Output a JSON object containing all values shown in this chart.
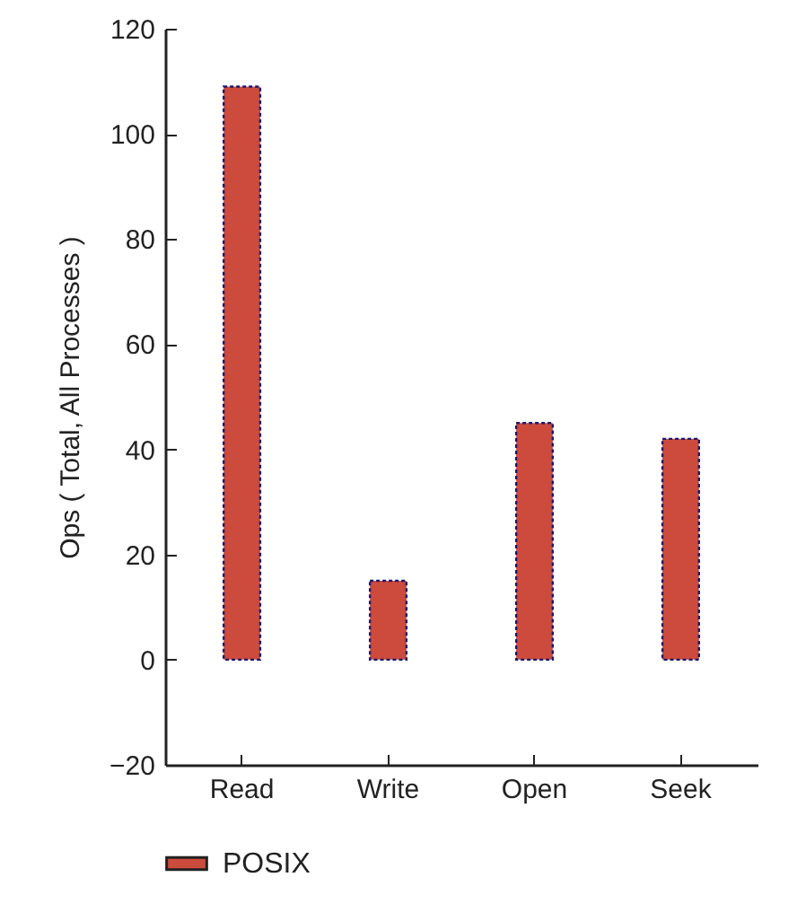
{
  "chart_data": {
    "type": "bar",
    "ylabel": "Ops ( Total, All Processes )",
    "categories": [
      "Read",
      "Write",
      "Open",
      "Seek"
    ],
    "series": [
      {
        "name": "POSIX",
        "color": "#cc4b3c",
        "values": [
          109,
          15,
          45,
          42
        ]
      }
    ],
    "ylim": [
      -20,
      120
    ],
    "yticks": [
      -20,
      0,
      20,
      40,
      60,
      80,
      100,
      120
    ],
    "grid": false,
    "legend": "bottom"
  }
}
